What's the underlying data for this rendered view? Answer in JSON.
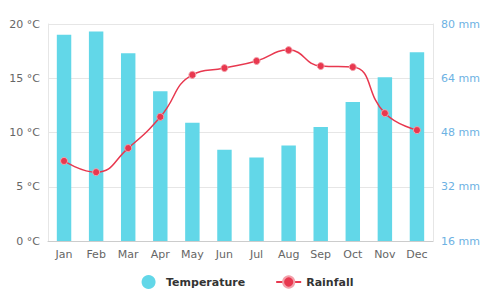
{
  "chart_data": {
    "type": "bar",
    "categories": [
      "Jan",
      "Feb",
      "Mar",
      "Apr",
      "May",
      "Jun",
      "Jul",
      "Aug",
      "Sep",
      "Oct",
      "Nov",
      "Dec"
    ],
    "series": [
      {
        "name": "Temperature",
        "type": "bar",
        "color": "#62d7e8",
        "values": [
          19.0,
          19.3,
          17.3,
          13.8,
          10.9,
          8.4,
          7.7,
          8.8,
          10.5,
          12.8,
          15.1,
          17.4
        ]
      },
      {
        "name": "Rainfall",
        "type": "line",
        "axis": "y2",
        "color": "#e8384f",
        "marker": "circle",
        "values": [
          39.6,
          36.3,
          43.4,
          52.6,
          65.0,
          67.0,
          69.1,
          72.3,
          67.6,
          67.3,
          53.7,
          48.7
        ]
      }
    ],
    "ylim": [
      0,
      20
    ],
    "yticks": [
      {
        "value": 0,
        "label": "0 °C"
      },
      {
        "value": 5,
        "label": "5 °C"
      },
      {
        "value": 10,
        "label": "10 °C"
      },
      {
        "value": 15,
        "label": "15 °C"
      },
      {
        "value": 20,
        "label": "20 °C"
      }
    ],
    "y2lim": [
      16,
      80
    ],
    "y2ticks": [
      {
        "value": 16,
        "label": "16 mm"
      },
      {
        "value": 32,
        "label": "32 mm"
      },
      {
        "value": 48,
        "label": "48 mm"
      },
      {
        "value": 64,
        "label": "64 mm"
      },
      {
        "value": 80,
        "label": "80 mm"
      }
    ],
    "grid": true,
    "legend": "bottom"
  }
}
